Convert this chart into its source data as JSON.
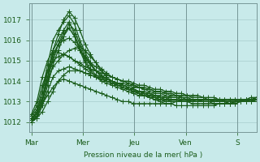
{
  "bg_color": "#c8eaea",
  "grid_color": "#a8cccc",
  "line_color": "#1a5c1a",
  "marker": "+",
  "markersize": 4,
  "linewidth": 0.9,
  "ylim": [
    1011.5,
    1017.8
  ],
  "yticks": [
    1012,
    1013,
    1014,
    1015,
    1016,
    1017
  ],
  "xtick_labels": [
    "Mar",
    "Mer",
    "Jeu",
    "Ven",
    "S"
  ],
  "xtick_pos": [
    0,
    48,
    96,
    144,
    192
  ],
  "xlabel": "Pression niveau de la mer( hPa )",
  "total_hours": 210,
  "n_points": 43,
  "series": [
    [
      1012.1,
      1012.2,
      1012.5,
      1013.0,
      1013.5,
      1014.0,
      1014.1,
      1014.0,
      1013.9,
      1013.8,
      1013.7,
      1013.6,
      1013.5,
      1013.4,
      1013.3,
      1013.2,
      1013.1,
      1013.0,
      1013.0,
      1012.9,
      1012.9,
      1012.9,
      1012.9,
      1012.9,
      1012.9,
      1012.9,
      1012.9,
      1013.0,
      1013.0,
      1013.0,
      1013.1,
      1013.1,
      1013.1,
      1013.1,
      1013.1,
      1013.1,
      1013.1,
      1013.1,
      1013.1,
      1013.1,
      1013.1,
      1013.1,
      1013.1
    ],
    [
      1012.2,
      1012.5,
      1013.2,
      1014.2,
      1015.0,
      1015.8,
      1016.2,
      1016.8,
      1016.5,
      1015.8,
      1015.2,
      1014.8,
      1014.5,
      1014.3,
      1014.1,
      1014.0,
      1013.9,
      1013.8,
      1013.7,
      1013.6,
      1013.5,
      1013.4,
      1013.3,
      1013.2,
      1013.1,
      1013.0,
      1013.0,
      1013.0,
      1013.0,
      1013.0,
      1013.0,
      1013.1,
      1013.1,
      1013.1,
      1013.0,
      1013.0,
      1013.0,
      1012.9,
      1012.9,
      1013.0,
      1013.0,
      1013.1,
      1013.1
    ],
    [
      1012.1,
      1012.4,
      1013.0,
      1014.0,
      1015.2,
      1015.8,
      1016.4,
      1016.6,
      1016.2,
      1015.5,
      1014.9,
      1014.5,
      1014.2,
      1014.0,
      1013.9,
      1013.8,
      1013.7,
      1013.6,
      1013.5,
      1013.4,
      1013.3,
      1013.3,
      1013.2,
      1013.2,
      1013.1,
      1013.1,
      1013.0,
      1013.0,
      1013.0,
      1013.0,
      1013.0,
      1013.0,
      1013.1,
      1013.1,
      1013.1,
      1013.0,
      1013.0,
      1012.9,
      1012.9,
      1013.0,
      1013.0,
      1013.1,
      1013.2
    ],
    [
      1012.0,
      1012.3,
      1013.1,
      1014.5,
      1015.5,
      1016.0,
      1016.5,
      1016.9,
      1016.3,
      1015.6,
      1015.0,
      1014.6,
      1014.3,
      1014.1,
      1014.0,
      1013.9,
      1013.8,
      1013.7,
      1013.6,
      1013.5,
      1013.4,
      1013.3,
      1013.3,
      1013.2,
      1013.2,
      1013.1,
      1013.1,
      1013.1,
      1013.1,
      1013.1,
      1013.1,
      1013.1,
      1013.1,
      1013.1,
      1013.0,
      1013.0,
      1013.0,
      1013.0,
      1013.0,
      1013.0,
      1013.0,
      1013.0,
      1013.1
    ],
    [
      1012.1,
      1012.5,
      1013.5,
      1014.8,
      1016.0,
      1016.5,
      1016.9,
      1017.2,
      1016.8,
      1016.0,
      1015.4,
      1014.9,
      1014.5,
      1014.2,
      1014.0,
      1013.9,
      1013.8,
      1013.7,
      1013.6,
      1013.5,
      1013.5,
      1013.4,
      1013.4,
      1013.3,
      1013.3,
      1013.2,
      1013.2,
      1013.2,
      1013.2,
      1013.1,
      1013.1,
      1013.1,
      1013.0,
      1013.0,
      1013.0,
      1013.0,
      1013.0,
      1013.0,
      1013.0,
      1013.0,
      1013.0,
      1013.0,
      1013.1
    ],
    [
      1012.3,
      1012.8,
      1013.8,
      1014.5,
      1015.0,
      1015.2,
      1015.3,
      1015.2,
      1015.0,
      1014.8,
      1014.6,
      1014.4,
      1014.3,
      1014.2,
      1014.1,
      1014.0,
      1013.9,
      1013.9,
      1013.8,
      1013.7,
      1013.7,
      1013.6,
      1013.6,
      1013.5,
      1013.5,
      1013.4,
      1013.4,
      1013.3,
      1013.3,
      1013.3,
      1013.2,
      1013.2,
      1013.2,
      1013.1,
      1013.1,
      1013.1,
      1013.0,
      1013.0,
      1013.0,
      1013.0,
      1013.1,
      1013.1,
      1013.2
    ],
    [
      1012.4,
      1013.0,
      1014.2,
      1015.0,
      1015.5,
      1015.4,
      1015.3,
      1015.2,
      1015.0,
      1014.9,
      1014.7,
      1014.6,
      1014.5,
      1014.4,
      1014.3,
      1014.2,
      1014.1,
      1014.0,
      1014.0,
      1013.9,
      1013.8,
      1013.8,
      1013.7,
      1013.6,
      1013.6,
      1013.5,
      1013.5,
      1013.4,
      1013.4,
      1013.3,
      1013.3,
      1013.3,
      1013.2,
      1013.2,
      1013.2,
      1013.1,
      1013.1,
      1013.1,
      1013.1,
      1013.1,
      1013.1,
      1013.2,
      1013.2
    ],
    [
      1012.0,
      1012.2,
      1012.8,
      1013.5,
      1014.2,
      1014.5,
      1014.6,
      1014.7,
      1014.6,
      1014.5,
      1014.4,
      1014.3,
      1014.2,
      1014.1,
      1014.0,
      1013.9,
      1013.8,
      1013.8,
      1013.7,
      1013.6,
      1013.5,
      1013.5,
      1013.4,
      1013.3,
      1013.2,
      1013.2,
      1013.1,
      1013.1,
      1013.0,
      1013.0,
      1012.9,
      1012.9,
      1012.9,
      1012.9,
      1012.9,
      1012.9,
      1012.9,
      1012.9,
      1013.0,
      1013.0,
      1013.0,
      1013.0,
      1013.1
    ],
    [
      1012.2,
      1012.4,
      1012.9,
      1013.3,
      1013.7,
      1014.0,
      1014.3,
      1014.5,
      1014.5,
      1014.5,
      1014.4,
      1014.3,
      1014.2,
      1014.1,
      1014.0,
      1013.9,
      1013.8,
      1013.7,
      1013.6,
      1013.5,
      1013.4,
      1013.3,
      1013.2,
      1013.1,
      1013.0,
      1012.9,
      1012.9,
      1012.8,
      1012.8,
      1012.8,
      1012.8,
      1012.8,
      1012.8,
      1012.8,
      1012.8,
      1012.9,
      1012.9,
      1012.9,
      1013.0,
      1013.0,
      1013.0,
      1013.0,
      1013.0
    ],
    [
      1012.1,
      1012.5,
      1013.2,
      1014.0,
      1014.7,
      1015.0,
      1015.3,
      1015.5,
      1015.6,
      1015.7,
      1015.5,
      1015.2,
      1014.9,
      1014.6,
      1014.4,
      1014.2,
      1014.1,
      1014.0,
      1013.9,
      1013.8,
      1013.7,
      1013.6,
      1013.5,
      1013.4,
      1013.4,
      1013.3,
      1013.2,
      1013.2,
      1013.1,
      1013.1,
      1013.0,
      1013.0,
      1013.0,
      1013.0,
      1013.0,
      1013.0,
      1013.0,
      1013.0,
      1013.0,
      1013.0,
      1013.0,
      1013.0,
      1013.1
    ],
    [
      1012.1,
      1012.3,
      1013.0,
      1014.2,
      1015.5,
      1016.3,
      1017.0,
      1017.4,
      1017.1,
      1016.5,
      1015.8,
      1015.3,
      1014.9,
      1014.5,
      1014.2,
      1014.0,
      1013.8,
      1013.7,
      1013.6,
      1013.5,
      1013.4,
      1013.3,
      1013.2,
      1013.1,
      1013.1,
      1013.0,
      1013.0,
      1013.0,
      1013.0,
      1013.0,
      1013.0,
      1013.0,
      1013.0,
      1013.0,
      1012.9,
      1012.9,
      1012.9,
      1012.9,
      1013.0,
      1013.0,
      1013.0,
      1013.0,
      1013.1
    ],
    [
      1012.0,
      1012.2,
      1012.8,
      1013.8,
      1014.8,
      1015.5,
      1016.2,
      1016.6,
      1016.2,
      1015.6,
      1015.1,
      1014.8,
      1014.5,
      1014.3,
      1014.1,
      1014.0,
      1013.9,
      1013.8,
      1013.7,
      1013.6,
      1013.5,
      1013.4,
      1013.3,
      1013.3,
      1013.2,
      1013.1,
      1013.1,
      1013.1,
      1013.0,
      1013.0,
      1013.0,
      1013.0,
      1013.0,
      1013.0,
      1013.0,
      1013.0,
      1013.0,
      1013.0,
      1013.0,
      1013.0,
      1013.1,
      1013.1,
      1013.2
    ],
    [
      1012.3,
      1012.6,
      1013.5,
      1014.5,
      1015.3,
      1015.8,
      1016.0,
      1016.1,
      1015.9,
      1015.5,
      1015.2,
      1014.9,
      1014.7,
      1014.5,
      1014.3,
      1014.2,
      1014.1,
      1014.0,
      1013.9,
      1013.8,
      1013.7,
      1013.7,
      1013.6,
      1013.5,
      1013.5,
      1013.4,
      1013.3,
      1013.3,
      1013.2,
      1013.2,
      1013.1,
      1013.1,
      1013.1,
      1013.1,
      1013.0,
      1013.0,
      1013.0,
      1013.0,
      1013.0,
      1013.0,
      1013.0,
      1013.1,
      1013.1
    ]
  ]
}
